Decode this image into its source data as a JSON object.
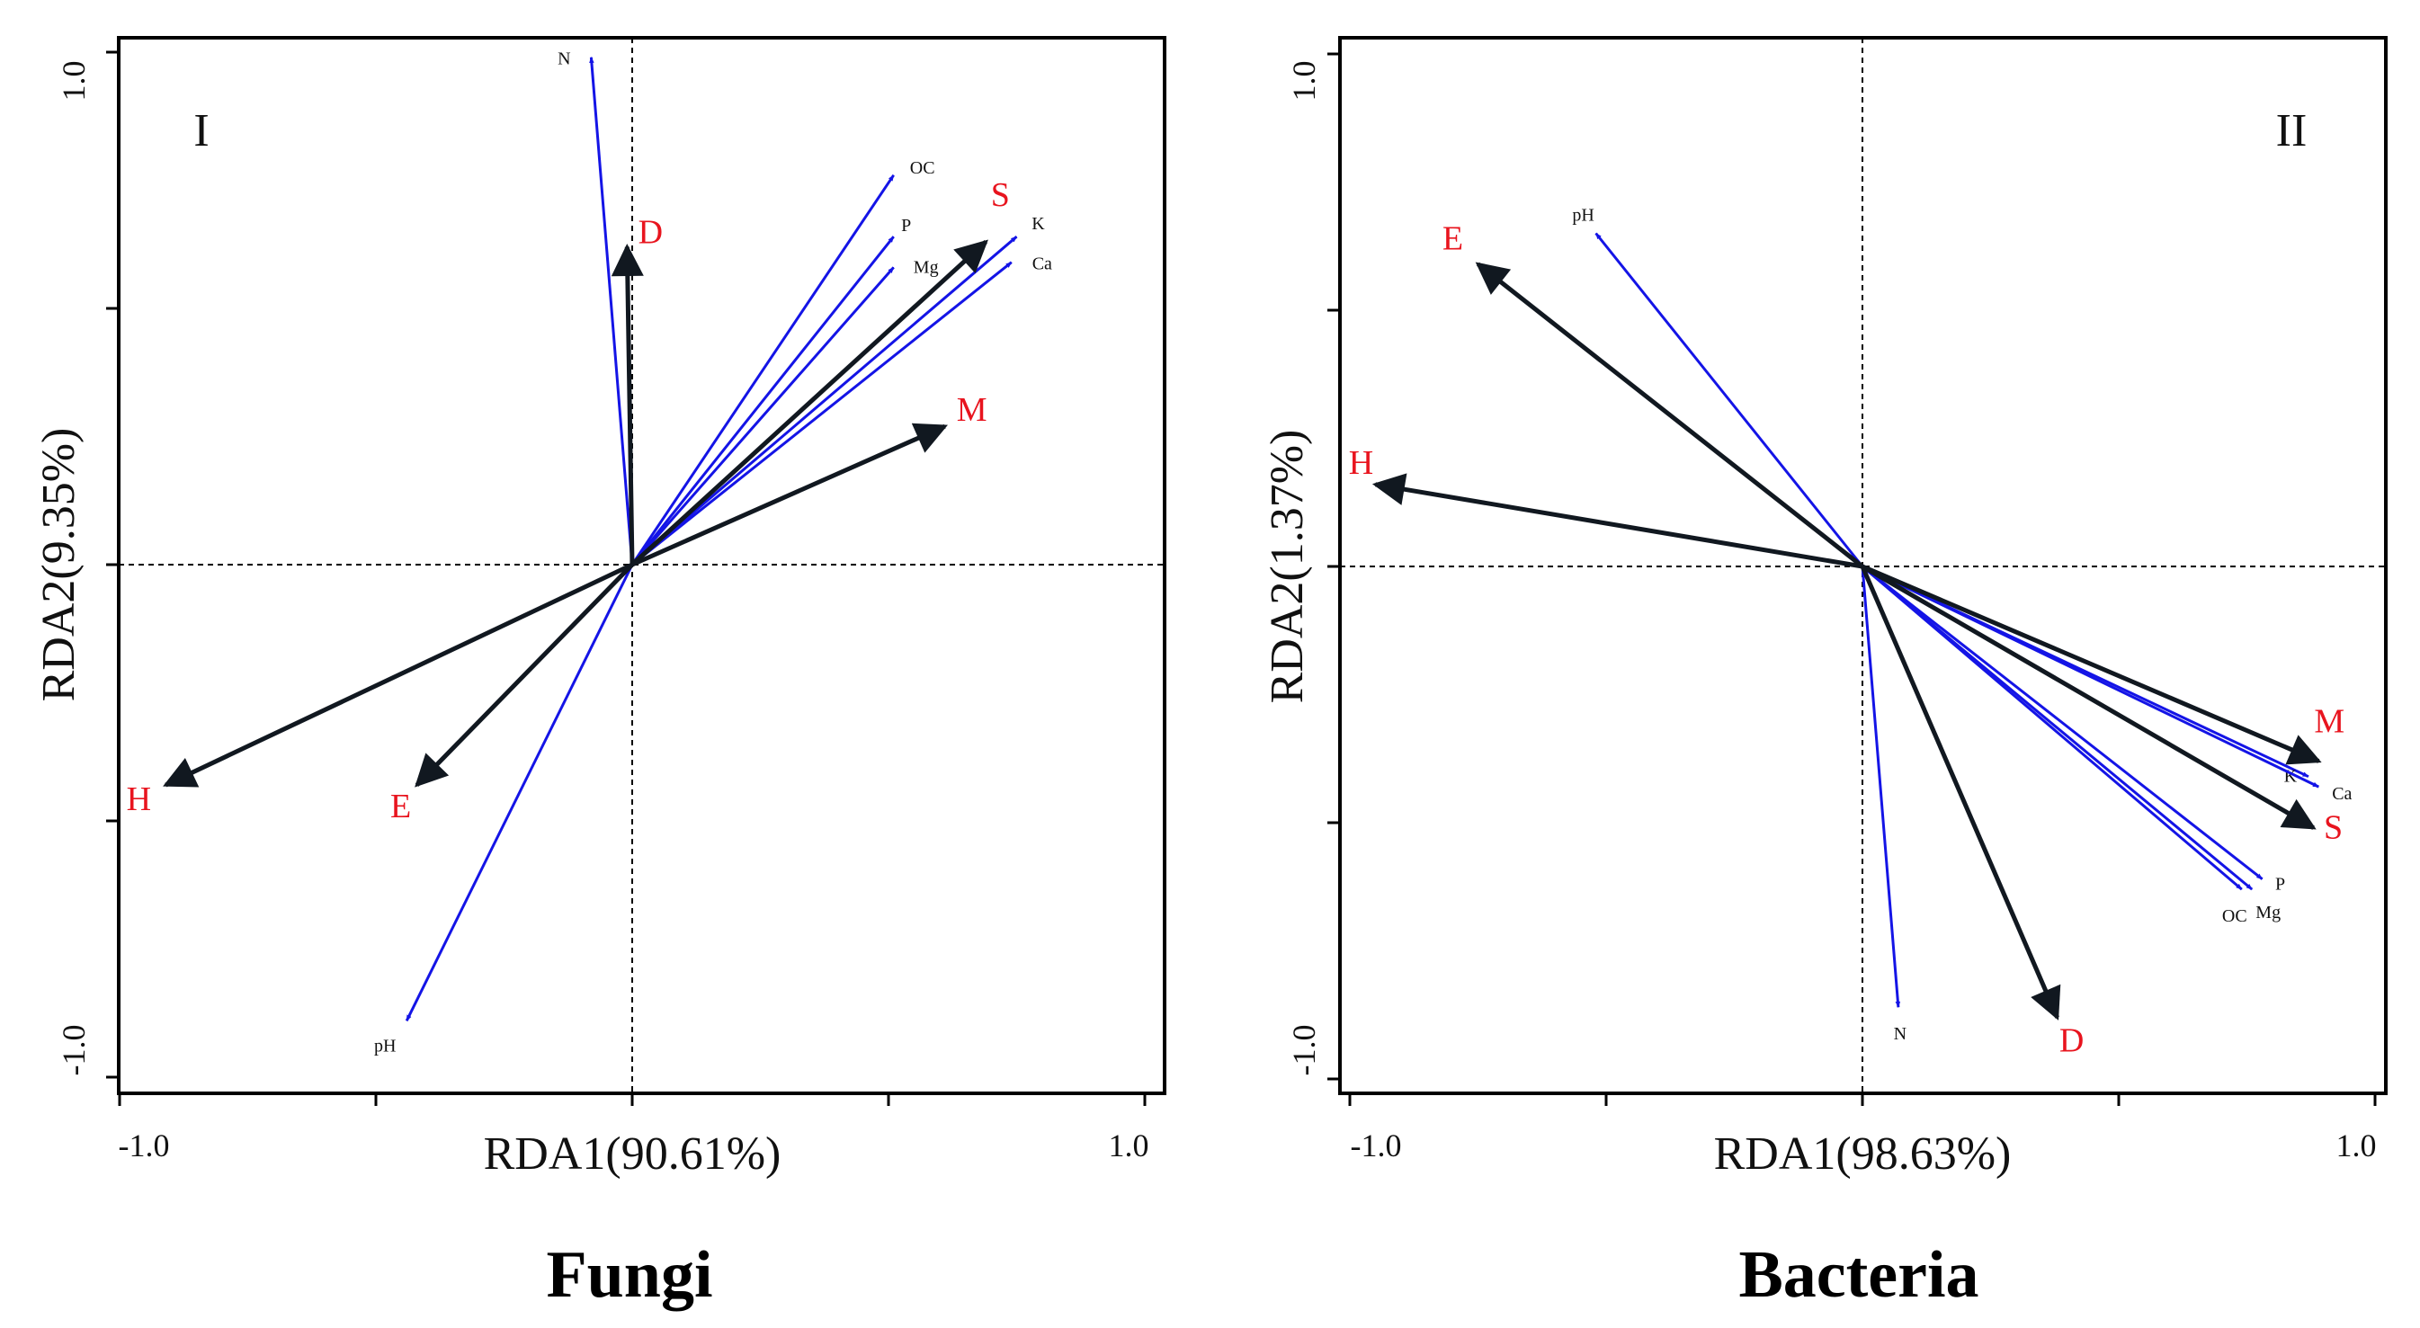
{
  "colors": {
    "env_arrow": "#1414e6",
    "group_arrow": "#111820",
    "group_label": "#e8141e",
    "env_label": "#111111",
    "axis": "#000000"
  },
  "chart_data": [
    {
      "type": "rda-biplot",
      "title": "Fungi",
      "panel_id": "I",
      "xlabel": "RDA1(90.61%)",
      "ylabel": "RDA2(9.35%)",
      "xlim": [
        -1.0,
        1.0
      ],
      "ylim": [
        -1.0,
        1.0
      ],
      "x_tick_labels": [
        "-1.0",
        "1.0"
      ],
      "y_tick_labels": [
        "1.0",
        "-1.0"
      ],
      "env_vectors": [
        {
          "name": "N",
          "x": -0.08,
          "y": 0.99
        },
        {
          "name": "OC",
          "x": 0.51,
          "y": 0.76
        },
        {
          "name": "P",
          "x": 0.51,
          "y": 0.64
        },
        {
          "name": "Mg",
          "x": 0.51,
          "y": 0.58
        },
        {
          "name": "K",
          "x": 0.75,
          "y": 0.64
        },
        {
          "name": "Ca",
          "x": 0.74,
          "y": 0.59
        },
        {
          "name": "pH",
          "x": -0.44,
          "y": -0.89
        }
      ],
      "group_vectors": [
        {
          "name": "D",
          "x": -0.01,
          "y": 0.62
        },
        {
          "name": "S",
          "x": 0.69,
          "y": 0.63
        },
        {
          "name": "M",
          "x": 0.61,
          "y": 0.27
        },
        {
          "name": "H",
          "x": -0.91,
          "y": -0.43
        },
        {
          "name": "E",
          "x": -0.42,
          "y": -0.43
        }
      ]
    },
    {
      "type": "rda-biplot",
      "title": "Bacteria",
      "panel_id": "II",
      "xlabel": "RDA1(98.63%)",
      "ylabel": "RDA2(1.37%)",
      "xlim": [
        -1.0,
        1.0
      ],
      "ylim": [
        -1.0,
        1.0
      ],
      "x_tick_labels": [
        "-1.0",
        "1.0"
      ],
      "y_tick_labels": [
        "1.0",
        "-1.0"
      ],
      "env_vectors": [
        {
          "name": "pH",
          "x": -0.52,
          "y": 0.65
        },
        {
          "name": "N",
          "x": 0.07,
          "y": -0.86
        },
        {
          "name": "K",
          "x": 0.87,
          "y": -0.41
        },
        {
          "name": "Ca",
          "x": 0.89,
          "y": -0.43
        },
        {
          "name": "P",
          "x": 0.78,
          "y": -0.61
        },
        {
          "name": "Mg",
          "x": 0.76,
          "y": -0.63
        },
        {
          "name": "OC",
          "x": 0.74,
          "y": -0.63
        }
      ],
      "group_vectors": [
        {
          "name": "E",
          "x": -0.75,
          "y": 0.59
        },
        {
          "name": "H",
          "x": -0.95,
          "y": 0.16
        },
        {
          "name": "M",
          "x": 0.89,
          "y": -0.38
        },
        {
          "name": "S",
          "x": 0.88,
          "y": -0.51
        },
        {
          "name": "D",
          "x": 0.38,
          "y": -0.88
        }
      ]
    }
  ]
}
